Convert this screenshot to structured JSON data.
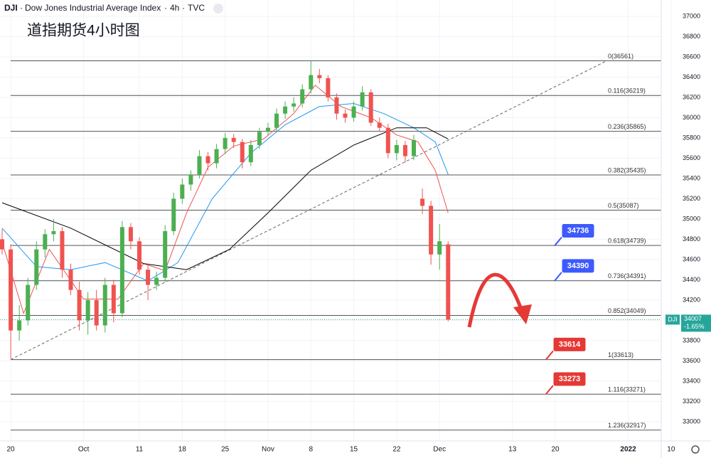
{
  "header": {
    "symbol": "DJI",
    "name": "Dow Jones Industrial Average Index",
    "interval": "4h",
    "source": "TVC"
  },
  "chart_data": {
    "type": "candlestick",
    "title": "道指期货4小时图",
    "x": [
      -2,
      0,
      2,
      4,
      6,
      8,
      10,
      12,
      14,
      16,
      18,
      20,
      22,
      24,
      26,
      28,
      30,
      32,
      34,
      36,
      38,
      40,
      42,
      44,
      46,
      48,
      50,
      52,
      54,
      56,
      58,
      60,
      62,
      64,
      66,
      68,
      70,
      72,
      74,
      76,
      78,
      80,
      82,
      84,
      86,
      88,
      90,
      92,
      94,
      96,
      98,
      100,
      102
    ],
    "open": [
      34800,
      34700,
      33900,
      34000,
      34350,
      34700,
      34850,
      34880,
      34500,
      34300,
      34000,
      34200,
      33950,
      34350,
      34070,
      34920,
      34780,
      34500,
      34350,
      34420,
      34880,
      35200,
      35340,
      35440,
      35620,
      35550,
      35690,
      35800,
      35760,
      35560,
      35730,
      35860,
      35900,
      36040,
      36110,
      36140,
      36280,
      36420,
      36390,
      36200,
      36040,
      36000,
      36110,
      36250,
      35950,
      35900,
      35650,
      35730,
      35620,
      35200,
      35130,
      34650,
      34750
    ],
    "high": [
      34900,
      34750,
      34150,
      34420,
      34780,
      34900,
      35000,
      34920,
      34560,
      34380,
      34280,
      34300,
      34420,
      34400,
      34980,
      34960,
      34820,
      34560,
      34480,
      34940,
      35260,
      35400,
      35480,
      35680,
      35660,
      35740,
      35850,
      35840,
      35790,
      35780,
      35900,
      35950,
      36090,
      36160,
      36200,
      36330,
      36561,
      36480,
      36420,
      36240,
      36080,
      36160,
      36310,
      36280,
      36000,
      35940,
      35780,
      35770,
      35830,
      35300,
      35180,
      34950,
      34780
    ],
    "low": [
      34650,
      33620,
      33800,
      33950,
      34300,
      34620,
      34780,
      34420,
      34250,
      33900,
      33860,
      33900,
      33880,
      33980,
      34030,
      34700,
      34450,
      34200,
      34300,
      34380,
      34840,
      35150,
      35280,
      35400,
      35480,
      35500,
      35640,
      35700,
      35500,
      35520,
      35690,
      35820,
      35860,
      35990,
      36060,
      36100,
      36240,
      36340,
      36160,
      35980,
      35950,
      35960,
      36070,
      35920,
      35860,
      35600,
      35580,
      35560,
      35580,
      35050,
      34550,
      34500,
      33990
    ],
    "close": [
      34700,
      33900,
      34000,
      34350,
      34700,
      34850,
      34880,
      34500,
      34300,
      34000,
      34200,
      33950,
      34350,
      34070,
      34920,
      34780,
      34500,
      34350,
      34420,
      34880,
      35200,
      35340,
      35440,
      35620,
      35550,
      35690,
      35800,
      35760,
      35560,
      35730,
      35860,
      35900,
      36040,
      36110,
      36140,
      36280,
      36420,
      36390,
      36200,
      36040,
      36000,
      36110,
      36250,
      35950,
      35900,
      35650,
      35730,
      35620,
      35780,
      35130,
      34650,
      34780,
      34007
    ],
    "up_color": "#4caf50",
    "down_color": "#ef5350",
    "moving_averages": [
      {
        "color": "#ef5350",
        "x": [
          -2,
          3,
          9,
          17,
          25,
          31,
          36,
          41,
          46,
          52,
          59,
          66,
          71,
          77,
          84,
          90,
          95,
          99,
          102
        ],
        "values": [
          34770,
          34070,
          34700,
          34210,
          34210,
          34560,
          34490,
          35060,
          35510,
          35720,
          35790,
          36040,
          36320,
          36110,
          36000,
          35830,
          35760,
          35480,
          35060
        ]
      },
      {
        "color": "#2196f3",
        "x": [
          -2,
          6,
          14,
          22,
          32,
          39,
          47,
          56,
          64,
          72,
          80,
          87,
          94,
          99,
          102
        ],
        "values": [
          34910,
          34530,
          34500,
          34570,
          34390,
          34570,
          35200,
          35650,
          35930,
          36110,
          36140,
          36040,
          35900,
          35760,
          35440
        ]
      },
      {
        "color": "#000000",
        "x": [
          -2,
          14,
          31,
          41,
          51,
          60,
          70,
          80,
          90,
          97,
          102
        ],
        "values": [
          35160,
          34910,
          34560,
          34500,
          34700,
          35060,
          35480,
          35730,
          35900,
          35900,
          35790
        ]
      }
    ],
    "fib_levels": [
      {
        "value": 36561,
        "label": "0(36561)"
      },
      {
        "value": 36219,
        "label": "0.116(36219)"
      },
      {
        "value": 35865,
        "label": "0.236(35865)"
      },
      {
        "value": 35435,
        "label": "0.382(35435)"
      },
      {
        "value": 35087,
        "label": "0.5(35087)"
      },
      {
        "value": 34739,
        "label": "0.618(34739)"
      },
      {
        "value": 34391,
        "label": "0.736(34391)"
      },
      {
        "value": 34049,
        "label": "0.852(34049)"
      },
      {
        "value": 33613,
        "label": "1(33613)"
      },
      {
        "value": 33271,
        "label": "1.116(33271)"
      },
      {
        "value": 32917,
        "label": "1.236(32917)"
      }
    ],
    "trend_line": {
      "x": [
        0,
        139
      ],
      "values": [
        33613,
        36561
      ]
    },
    "annotations": [
      {
        "value": 34736,
        "color": "#3d5afe"
      },
      {
        "value": 34390,
        "color": "#3d5afe"
      },
      {
        "value": 33614,
        "color": "#e53935"
      },
      {
        "value": 33273,
        "color": "#e53935"
      }
    ],
    "last_price": {
      "symbol": "DJI",
      "value": 34007,
      "change": "-1.65%",
      "color": "#26a69a"
    },
    "xlim": [
      -2.5,
      151.7
    ],
    "ylim": [
      32810,
      37161
    ],
    "xticks": [
      {
        "value": 0,
        "label": "20"
      },
      {
        "value": 17,
        "label": "Oct"
      },
      {
        "value": 30,
        "label": "11"
      },
      {
        "value": 40,
        "label": "18"
      },
      {
        "value": 50,
        "label": "25"
      },
      {
        "value": 60,
        "label": "Nov"
      },
      {
        "value": 70,
        "label": "8"
      },
      {
        "value": 80,
        "label": "15"
      },
      {
        "value": 90,
        "label": "22"
      },
      {
        "value": 100,
        "label": "Dec"
      },
      {
        "value": 117,
        "label": "13"
      },
      {
        "value": 127,
        "label": "20"
      },
      {
        "value": 144,
        "label": "2022"
      },
      {
        "value": 154,
        "label": "10"
      }
    ],
    "yticks": [
      33000,
      33200,
      33400,
      33600,
      33800,
      34000,
      34200,
      34400,
      34600,
      34800,
      35000,
      35200,
      35400,
      35600,
      35800,
      36000,
      36200,
      36400,
      36600,
      36800,
      37000
    ],
    "grid": true
  }
}
